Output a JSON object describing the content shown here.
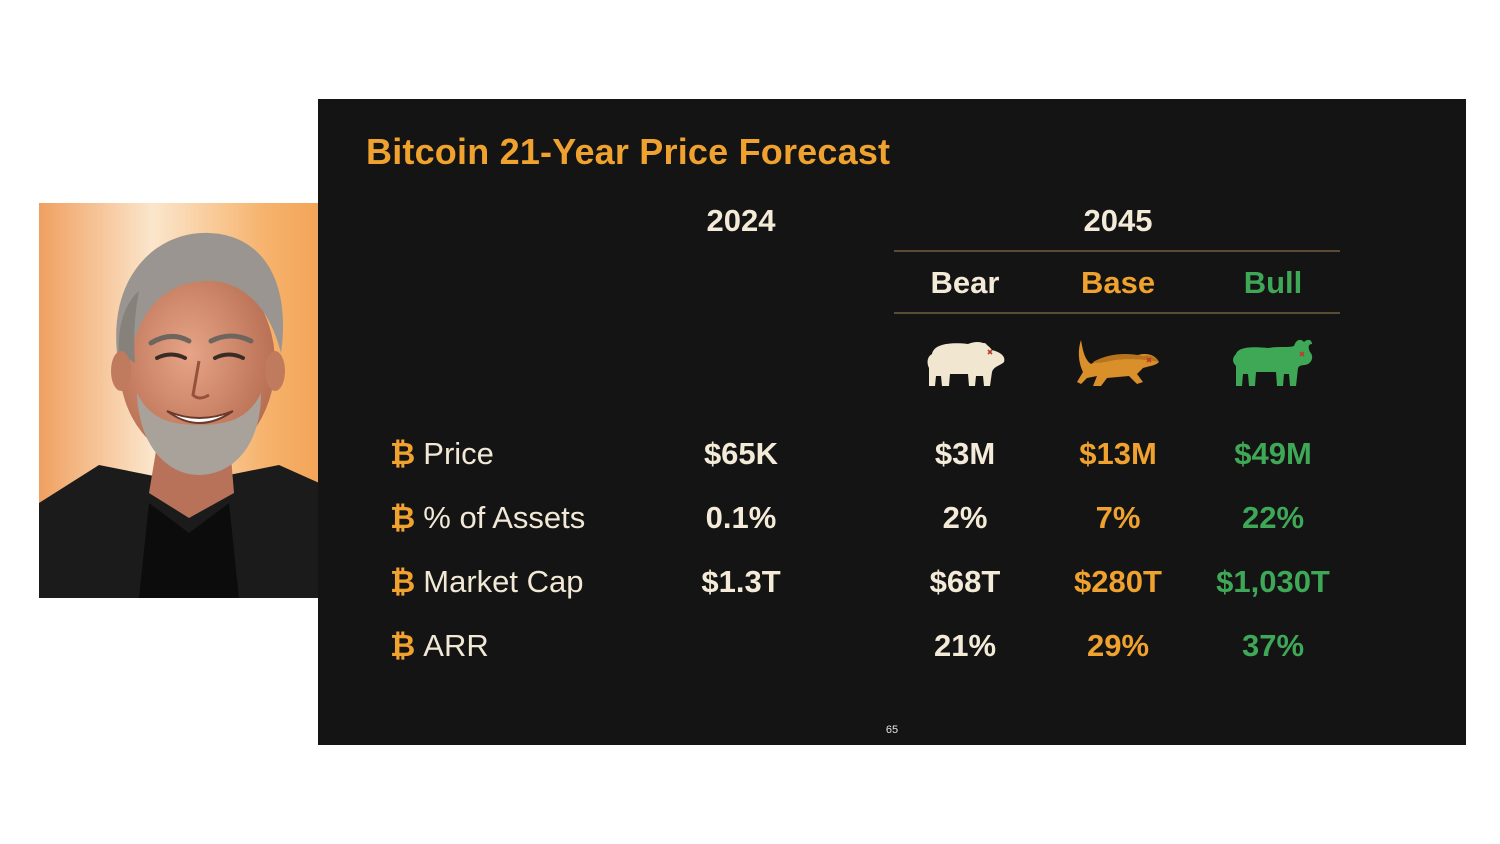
{
  "slide": {
    "title": "Bitcoin 21-Year Price Forecast",
    "year_current": "2024",
    "year_forecast": "2045",
    "scenarios": [
      {
        "label": "Bear",
        "color": "#f3ead8",
        "icon": "bear-icon"
      },
      {
        "label": "Base",
        "color": "#f0a22e",
        "icon": "honey-badger-icon"
      },
      {
        "label": "Bull",
        "color": "#3fa857",
        "icon": "bull-icon"
      }
    ],
    "btc_symbol": "₿",
    "rows": [
      {
        "label": "Price",
        "v2024": "$65K",
        "bear": "$3M",
        "base": "$13M",
        "bull": "$49M"
      },
      {
        "label": "% of Assets",
        "v2024": "0.1%",
        "bear": "2%",
        "base": "7%",
        "bull": "22%"
      },
      {
        "label": "Market Cap",
        "v2024": "$1.3T",
        "bear": "$68T",
        "base": "$280T",
        "bull": "$1,030T"
      },
      {
        "label": "ARR",
        "v2024": "",
        "bear": "21%",
        "base": "29%",
        "bull": "37%"
      }
    ],
    "page_number": "65"
  },
  "colors": {
    "slide_background": "#141414",
    "accent_orange": "#f0a22e",
    "bull_green": "#3fa857",
    "text_cream": "#f3ead8"
  }
}
